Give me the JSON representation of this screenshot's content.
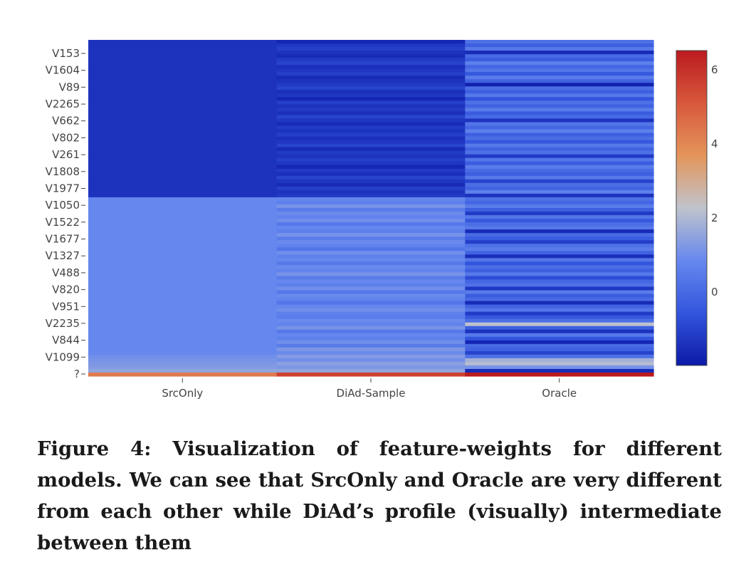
{
  "caption": "Figure 4: Visualization of feature-weights for different models. We can see that SrcOnly and Oracle are very different from each other while DiAd’s profile (visually) intermediate between them",
  "chart_data": {
    "type": "heatmap",
    "title": "",
    "xlabel": "",
    "ylabel": "",
    "x": [
      "SrcOnly",
      "DiAd-Sample",
      "Oracle"
    ],
    "y_tick_labels": [
      "V153",
      "V1604",
      "V89",
      "V2265",
      "V662",
      "V802",
      "V261",
      "V1808",
      "V1977",
      "V1050",
      "V1522",
      "V1677",
      "V1327",
      "V488",
      "V820",
      "V951",
      "V2235",
      "V844",
      "V1099",
      "?"
    ],
    "colorscale": [
      "#0c1aa8",
      "#3355dd",
      "#6688ee",
      "#c0c3cc",
      "#e4955a",
      "#d8583c",
      "#bb1a1e"
    ],
    "zlim": [
      -2,
      6.5
    ],
    "colorbar_ticks": [
      0,
      2,
      4,
      6
    ],
    "grid": false,
    "legend": "none",
    "columns": [
      {
        "name": "SrcOnly",
        "values": [
          -1.4,
          -1.4,
          -1.4,
          -1.4,
          -1.4,
          -1.4,
          -1.4,
          -1.4,
          -1.4,
          -1.4,
          -1.4,
          -1.4,
          -1.4,
          -1.4,
          -1.4,
          -1.4,
          -1.4,
          -1.4,
          -1.4,
          -1.4,
          -1.4,
          -1.4,
          -1.4,
          -1.4,
          -1.4,
          -1.4,
          -1.4,
          -1.4,
          -1.4,
          -1.4,
          -1.4,
          -1.4,
          -1.4,
          -1.4,
          -1.4,
          -1.4,
          -1.4,
          -1.4,
          -1.4,
          -1.4,
          -1.4,
          -1.4,
          -1.4,
          -1.4,
          0.8,
          0.8,
          0.8,
          0.8,
          0.8,
          0.8,
          0.8,
          0.8,
          0.8,
          0.8,
          0.8,
          0.8,
          0.8,
          0.8,
          0.8,
          0.8,
          0.8,
          0.8,
          0.8,
          0.8,
          0.8,
          0.8,
          0.8,
          0.8,
          0.8,
          0.8,
          0.8,
          0.8,
          0.8,
          0.8,
          0.8,
          0.8,
          0.8,
          0.8,
          0.8,
          0.8,
          0.8,
          0.8,
          0.8,
          0.8,
          0.8,
          0.8,
          0.8,
          0.8,
          1.0,
          1.1,
          1.2,
          1.3,
          1.5,
          4.3
        ]
      },
      {
        "name": "DiAd-Sample",
        "values": [
          -1.7,
          -1.3,
          -1.1,
          -1.4,
          -1.6,
          -1.2,
          -1.0,
          -1.5,
          -1.3,
          -1.1,
          -1.6,
          -1.4,
          -1.2,
          -1.0,
          -1.5,
          -1.3,
          -1.7,
          -1.1,
          -1.4,
          -1.2,
          -1.5,
          -1.0,
          -1.3,
          -1.6,
          -1.2,
          -1.4,
          -1.1,
          -1.5,
          -1.3,
          -1.0,
          -1.6,
          -1.2,
          -1.4,
          -1.1,
          -1.3,
          -1.7,
          -1.2,
          -1.5,
          -1.0,
          -1.3,
          -1.6,
          -1.1,
          -1.4,
          -1.2,
          0.8,
          0.6,
          1.1,
          0.5,
          0.9,
          0.7,
          1.0,
          0.4,
          0.8,
          0.6,
          1.1,
          0.5,
          0.9,
          0.7,
          0.3,
          1.0,
          0.6,
          0.8,
          0.4,
          0.9,
          0.7,
          1.1,
          0.5,
          0.8,
          0.6,
          1.0,
          0.4,
          0.9,
          0.7,
          0.3,
          0.8,
          1.0,
          0.6,
          0.5,
          0.9,
          0.7,
          1.1,
          0.4,
          0.8,
          0.6,
          1.0,
          0.5,
          1.2,
          0.9,
          1.3,
          1.0,
          1.4,
          1.2,
          1.5,
          5.6
        ]
      },
      {
        "name": "Oracle",
        "values": [
          0.2,
          -0.3,
          0.4,
          -1.6,
          0.0,
          -0.4,
          0.6,
          -0.1,
          0.3,
          -0.5,
          0.5,
          -0.2,
          -1.8,
          0.1,
          -0.3,
          0.4,
          -0.6,
          0.2,
          -0.2,
          0.5,
          -0.4,
          0.0,
          -1.4,
          0.3,
          -0.1,
          0.6,
          -0.3,
          0.1,
          -0.5,
          0.4,
          -0.2,
          0.2,
          -1.2,
          0.3,
          -0.4,
          0.5,
          0.0,
          -0.3,
          0.4,
          -1.0,
          0.1,
          -0.2,
          0.6,
          -1.4,
          0.2,
          -0.1,
          0.5,
          -0.3,
          -1.2,
          0.3,
          -0.5,
          0.1,
          0.4,
          -1.6,
          0.0,
          -0.4,
          -1.1,
          0.2,
          0.5,
          -0.2,
          -1.5,
          0.3,
          -0.6,
          0.1,
          -0.3,
          0.4,
          -0.8,
          -0.1,
          0.2,
          -1.3,
          0.5,
          -0.4,
          0.0,
          -1.6,
          -0.2,
          0.3,
          -1.2,
          -0.5,
          0.1,
          2.2,
          -0.3,
          -1.4,
          0.4,
          -0.6,
          -1.7,
          0.0,
          -0.2,
          -1.0,
          0.2,
          1.8,
          2.1,
          1.1,
          -1.6,
          6.5
        ]
      }
    ]
  }
}
